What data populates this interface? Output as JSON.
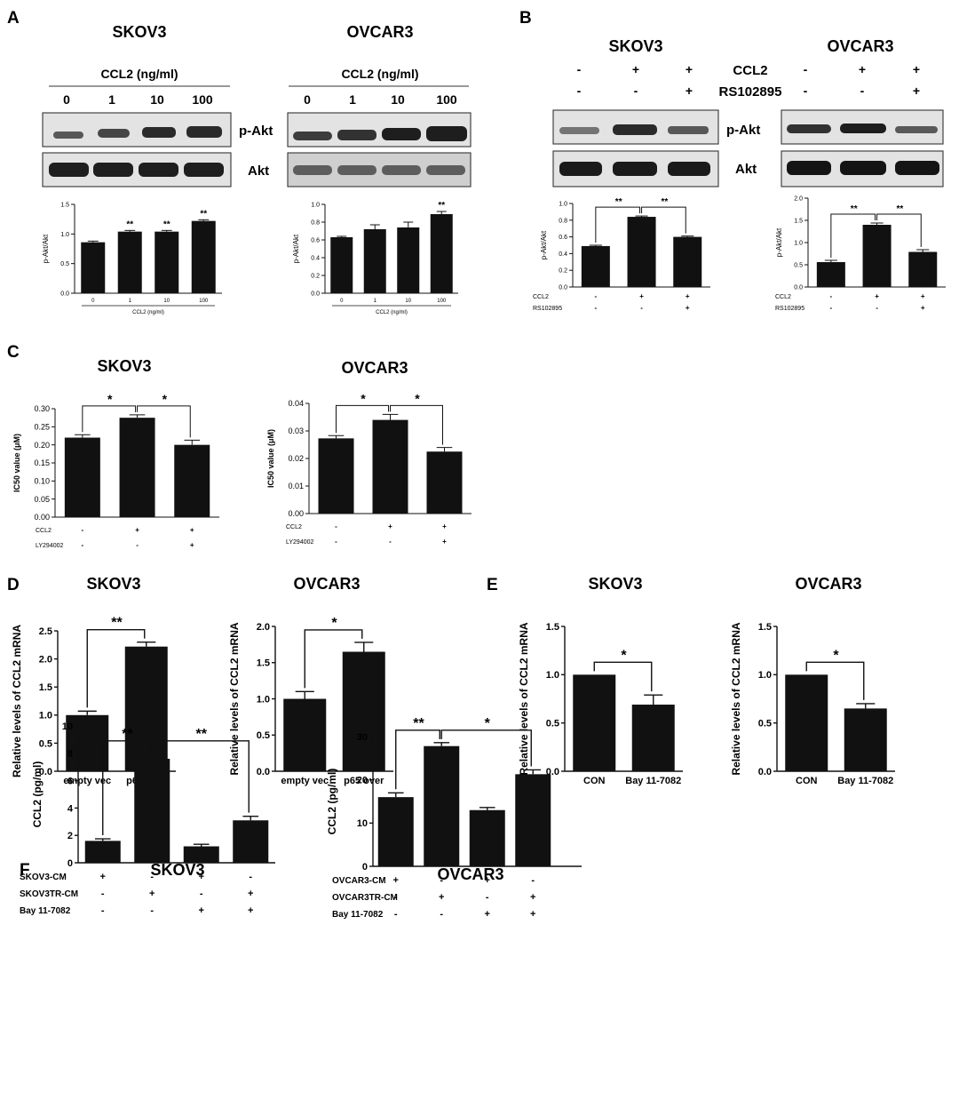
{
  "panel_letters": [
    "A",
    "B",
    "C",
    "D",
    "E",
    "F"
  ],
  "panelA": {
    "blots": [
      {
        "title": "SKOV3",
        "treatment_label": "CCL2 (ng/ml)",
        "doses": [
          "0",
          "1",
          "10",
          "100"
        ],
        "rows": [
          "p-Akt",
          "Akt"
        ]
      },
      {
        "title": "OVCAR3",
        "treatment_label": "CCL2 (ng/ml)",
        "doses": [
          "0",
          "1",
          "10",
          "100"
        ],
        "rows": [
          "p-Akt",
          "Akt"
        ]
      }
    ]
  },
  "panelB": {
    "blots": [
      {
        "title": "SKOV3",
        "rows": [
          "p-Akt",
          "Akt"
        ]
      },
      {
        "title": "OVCAR3",
        "rows": [
          "p-Akt",
          "Akt"
        ]
      }
    ],
    "treatment_rows": [
      {
        "label": "CCL2",
        "signs": [
          "-",
          "+",
          "+"
        ]
      },
      {
        "label": "RS102895",
        "signs": [
          "-",
          "-",
          "+"
        ]
      }
    ]
  },
  "panelC_titles": [
    "SKOV3",
    "OVCAR3"
  ],
  "panelD_titles": [
    "SKOV3",
    "OVCAR3"
  ],
  "panelE_titles": [
    "SKOV3",
    "OVCAR3"
  ],
  "panelF_titles": [
    "SKOV3",
    "OVCAR3"
  ],
  "chart_data": [
    {
      "id": "A1",
      "type": "bar",
      "ylabel": "p-Akt/Akt",
      "xlabel": "CCL2 (ng/ml)",
      "ylim": [
        0,
        1.5
      ],
      "yticks": [
        "0.0",
        "0.5",
        "1.0",
        "1.5"
      ],
      "categories": [
        "0",
        "1",
        "10",
        "100"
      ],
      "values": [
        0.86,
        1.04,
        1.04,
        1.22
      ],
      "errors": [
        0.02,
        0.02,
        0.02,
        0.02
      ],
      "sig": [
        "",
        "**",
        "**",
        "**"
      ]
    },
    {
      "id": "A2",
      "type": "bar",
      "ylabel": "p-Akt/Akt",
      "xlabel": "CCL2 (ng/ml)",
      "ylim": [
        0,
        1.0
      ],
      "yticks": [
        "0.0",
        "0.2",
        "0.4",
        "0.6",
        "0.8",
        "1.0"
      ],
      "categories": [
        "0",
        "1",
        "10",
        "100"
      ],
      "values": [
        0.63,
        0.72,
        0.74,
        0.89
      ],
      "errors": [
        0.01,
        0.05,
        0.06,
        0.03
      ],
      "sig": [
        "",
        "",
        "",
        "**"
      ]
    },
    {
      "id": "B1",
      "type": "bar",
      "ylabel": "p-Akt/Akt",
      "ylim": [
        0,
        1.0
      ],
      "yticks": [
        "0.0",
        "0.2",
        "0.4",
        "0.6",
        "0.8",
        "1.0"
      ],
      "values": [
        0.49,
        0.84,
        0.6
      ],
      "errors": [
        0.01,
        0.01,
        0.01
      ],
      "brackets": [
        {
          "from": 0,
          "to": 1,
          "label": "**"
        },
        {
          "from": 1,
          "to": 2,
          "label": "**"
        }
      ],
      "xrows": [
        {
          "label": "CCL2",
          "signs": [
            "-",
            "+",
            "+"
          ]
        },
        {
          "label": "RS102895",
          "signs": [
            "-",
            "-",
            "+"
          ]
        }
      ]
    },
    {
      "id": "B2",
      "type": "bar",
      "ylabel": "p-Akt/Akt",
      "ylim": [
        0,
        2.0
      ],
      "yticks": [
        "0.0",
        "0.5",
        "1.0",
        "1.5",
        "2.0"
      ],
      "values": [
        0.56,
        1.4,
        0.79
      ],
      "errors": [
        0.04,
        0.04,
        0.05
      ],
      "brackets": [
        {
          "from": 0,
          "to": 1,
          "label": "**"
        },
        {
          "from": 1,
          "to": 2,
          "label": "**"
        }
      ],
      "xrows": [
        {
          "label": "CCL2",
          "signs": [
            "-",
            "+",
            "+"
          ]
        },
        {
          "label": "RS102895",
          "signs": [
            "-",
            "-",
            "+"
          ]
        }
      ]
    },
    {
      "id": "C1",
      "type": "bar",
      "ylabel": "IC50 value (μM)",
      "ylim": [
        0,
        0.3
      ],
      "yticks": [
        "0.00",
        "0.05",
        "0.10",
        "0.15",
        "0.20",
        "0.25",
        "0.30"
      ],
      "values": [
        0.22,
        0.275,
        0.2
      ],
      "errors": [
        0.008,
        0.008,
        0.013
      ],
      "brackets": [
        {
          "from": 0,
          "to": 1,
          "label": "*"
        },
        {
          "from": 1,
          "to": 2,
          "label": "*"
        }
      ],
      "xrows": [
        {
          "label": "CCL2",
          "signs": [
            "-",
            "+",
            "+"
          ]
        },
        {
          "label": "LY294002",
          "signs": [
            "-",
            "-",
            "+"
          ]
        }
      ]
    },
    {
      "id": "C2",
      "type": "bar",
      "ylabel": "IC50 value (μM)",
      "ylim": [
        0,
        0.04
      ],
      "yticks": [
        "0.00",
        "0.01",
        "0.02",
        "0.03",
        "0.04"
      ],
      "values": [
        0.0273,
        0.034,
        0.0225
      ],
      "errors": [
        0.001,
        0.002,
        0.0015
      ],
      "brackets": [
        {
          "from": 0,
          "to": 1,
          "label": "*"
        },
        {
          "from": 1,
          "to": 2,
          "label": "*"
        }
      ],
      "xrows": [
        {
          "label": "CCL2",
          "signs": [
            "-",
            "+",
            "+"
          ]
        },
        {
          "label": "LY294002",
          "signs": [
            "-",
            "-",
            "+"
          ]
        }
      ]
    },
    {
      "id": "D1",
      "type": "bar",
      "ylabel": "Relative levels of CCL2 mRNA",
      "ylim": [
        0,
        2.5
      ],
      "yticks": [
        "0.0",
        "0.5",
        "1.0",
        "1.5",
        "2.0",
        "2.5"
      ],
      "categories": [
        "empty vec",
        "p65 over"
      ],
      "values": [
        1.0,
        2.22
      ],
      "errors": [
        0.07,
        0.08
      ],
      "brackets": [
        {
          "from": 0,
          "to": 1,
          "label": "**"
        }
      ]
    },
    {
      "id": "D2",
      "type": "bar",
      "ylabel": "Relative levels of CCL2 mRNA",
      "ylim": [
        0,
        2.0
      ],
      "yticks": [
        "0.0",
        "0.5",
        "1.0",
        "1.5",
        "2.0"
      ],
      "categories": [
        "empty vec",
        "p65 over"
      ],
      "values": [
        1.0,
        1.65
      ],
      "errors": [
        0.1,
        0.13
      ],
      "brackets": [
        {
          "from": 0,
          "to": 1,
          "label": "*"
        }
      ]
    },
    {
      "id": "E1",
      "type": "bar",
      "ylabel": "Relative levels of CCL2 mRNA",
      "ylim": [
        0,
        1.5
      ],
      "yticks": [
        "0.0",
        "0.5",
        "1.0",
        "1.5"
      ],
      "categories": [
        "CON",
        "Bay 11-7082"
      ],
      "values": [
        1.0,
        0.69
      ],
      "errors": [
        0.0,
        0.1
      ],
      "brackets": [
        {
          "from": 0,
          "to": 1,
          "label": "*"
        }
      ]
    },
    {
      "id": "E2",
      "type": "bar",
      "ylabel": "Relative levels of CCL2 mRNA",
      "ylim": [
        0,
        1.5
      ],
      "yticks": [
        "0.0",
        "0.5",
        "1.0",
        "1.5"
      ],
      "categories": [
        "CON",
        "Bay 11-7082"
      ],
      "values": [
        1.0,
        0.65
      ],
      "errors": [
        0.0,
        0.05
      ],
      "brackets": [
        {
          "from": 0,
          "to": 1,
          "label": "*"
        }
      ]
    },
    {
      "id": "F1",
      "type": "bar",
      "ylabel": "CCL2 (pg/ml)",
      "ylim": [
        0,
        10
      ],
      "yticks": [
        "0",
        "2",
        "4",
        "6",
        "8",
        "10"
      ],
      "values": [
        1.6,
        7.6,
        1.2,
        3.1
      ],
      "errors": [
        0.15,
        0.4,
        0.15,
        0.3
      ],
      "brackets": [
        {
          "from": 0,
          "to": 1,
          "label": "**"
        },
        {
          "from": 1,
          "to": 3,
          "label": "**"
        }
      ],
      "xrows": [
        {
          "label": "SKOV3-CM",
          "signs": [
            "+",
            "-",
            "+",
            "-"
          ]
        },
        {
          "label": "SKOV3TR-CM",
          "signs": [
            "-",
            "+",
            "-",
            "+"
          ]
        },
        {
          "label": "Bay 11-7082",
          "signs": [
            "-",
            "-",
            "+",
            "+"
          ]
        }
      ]
    },
    {
      "id": "F2",
      "type": "bar",
      "ylabel": "CCL2 (pg/ml)",
      "ylim": [
        0,
        30
      ],
      "yticks": [
        "0",
        "10",
        "20",
        "30"
      ],
      "values": [
        16.0,
        27.8,
        13.0,
        21.3
      ],
      "errors": [
        1.0,
        0.8,
        0.6,
        1.0
      ],
      "brackets": [
        {
          "from": 0,
          "to": 1,
          "label": "**"
        },
        {
          "from": 1,
          "to": 3,
          "label": "*"
        }
      ],
      "xrows": [
        {
          "label": "OVCAR3-CM",
          "signs": [
            "+",
            "-",
            "+",
            "-"
          ]
        },
        {
          "label": "OVCAR3TR-CM",
          "signs": [
            "-",
            "+",
            "-",
            "+"
          ]
        },
        {
          "label": "Bay 11-7082",
          "signs": [
            "-",
            "-",
            "+",
            "+"
          ]
        }
      ]
    }
  ]
}
